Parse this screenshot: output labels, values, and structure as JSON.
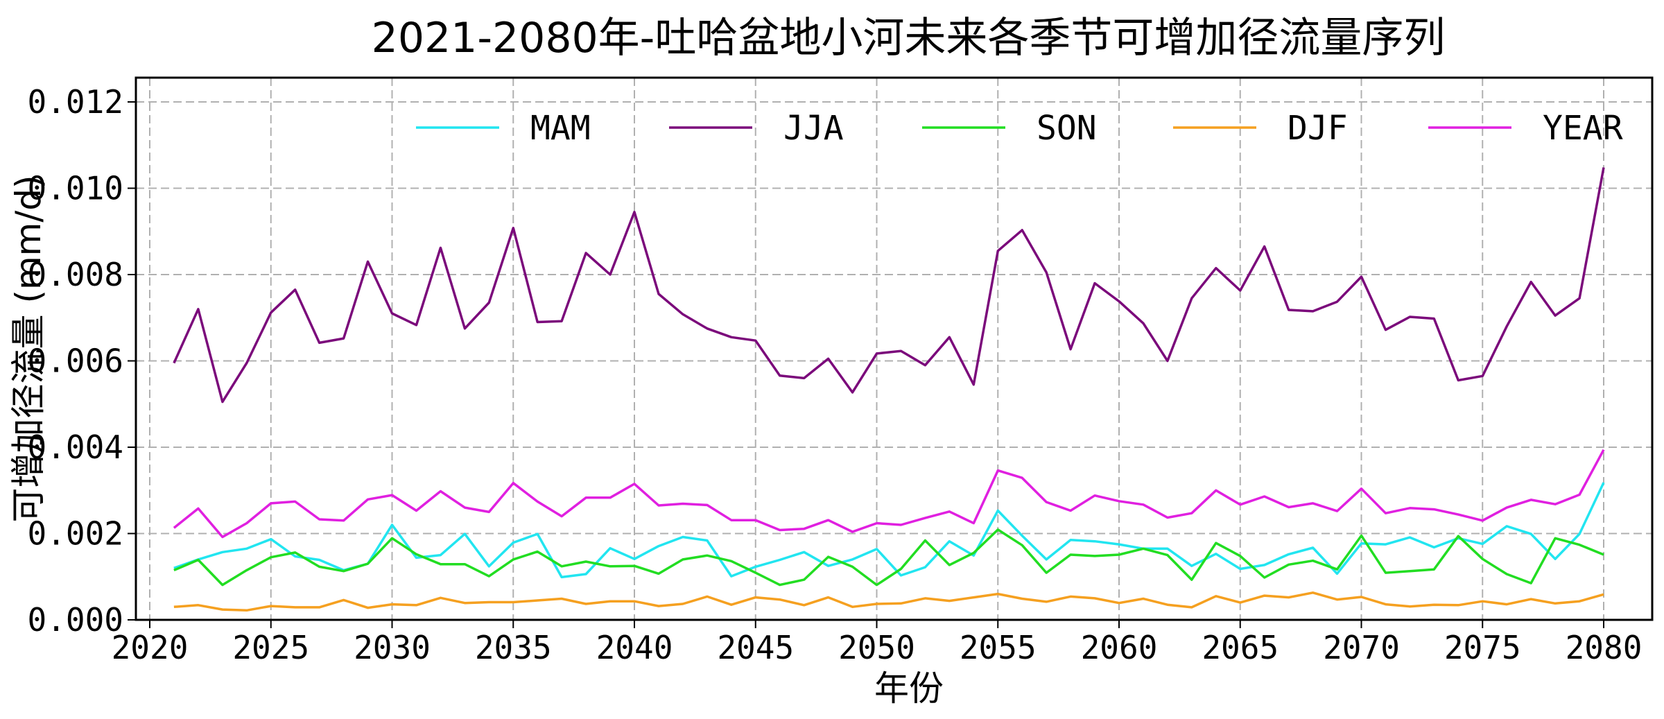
{
  "chart_data": {
    "type": "line",
    "title": "2021-2080年-吐哈盆地小河未来各季节可增加径流量序列",
    "xlabel": "年份",
    "ylabel": "可增加径流量 (mm/d)",
    "xlim": [
      2020,
      2082
    ],
    "ylim": [
      0,
      0.0126
    ],
    "xticks": [
      "2020",
      "2025",
      "2030",
      "2035",
      "2040",
      "2045",
      "2050",
      "2055",
      "2060",
      "2065",
      "2070",
      "2075",
      "2080"
    ],
    "yticks": [
      "0.000",
      "0.002",
      "0.004",
      "0.006",
      "0.008",
      "0.010",
      "0.012"
    ],
    "grid": true,
    "legend_position": "top",
    "x": [
      2021,
      2022,
      2023,
      2024,
      2025,
      2026,
      2027,
      2028,
      2029,
      2030,
      2031,
      2032,
      2033,
      2034,
      2035,
      2036,
      2037,
      2038,
      2039,
      2040,
      2041,
      2042,
      2043,
      2044,
      2045,
      2046,
      2047,
      2048,
      2049,
      2050,
      2051,
      2052,
      2053,
      2054,
      2055,
      2056,
      2057,
      2058,
      2059,
      2060,
      2061,
      2062,
      2063,
      2064,
      2065,
      2066,
      2067,
      2068,
      2069,
      2070,
      2071,
      2072,
      2073,
      2074,
      2075,
      2076,
      2077,
      2078,
      2079,
      2080
    ],
    "series": [
      {
        "name": "MAM",
        "color": "#22e5f0",
        "values": [
          0.0012,
          0.0014,
          0.00157,
          0.00165,
          0.00187,
          0.00147,
          0.00139,
          0.00115,
          0.0013,
          0.0022,
          0.00144,
          0.0015,
          0.00199,
          0.00124,
          0.00179,
          0.00199,
          0.00099,
          0.00106,
          0.00166,
          0.00141,
          0.00171,
          0.00192,
          0.00184,
          0.00101,
          0.00123,
          0.00139,
          0.00157,
          0.00125,
          0.0014,
          0.00164,
          0.00103,
          0.00122,
          0.00182,
          0.00149,
          0.00253,
          0.00195,
          0.0014,
          0.00185,
          0.00182,
          0.00175,
          0.00165,
          0.00165,
          0.00125,
          0.00153,
          0.00118,
          0.00127,
          0.00152,
          0.00167,
          0.00107,
          0.00177,
          0.00175,
          0.00191,
          0.00168,
          0.00189,
          0.00176,
          0.00217,
          0.00199,
          0.00141,
          0.00199,
          0.00318
        ]
      },
      {
        "name": "JJA",
        "color": "#7b0a7b",
        "values": [
          0.00595,
          0.0072,
          0.00505,
          0.00595,
          0.00712,
          0.00765,
          0.00642,
          0.00652,
          0.0083,
          0.0071,
          0.00683,
          0.00862,
          0.00675,
          0.00735,
          0.00908,
          0.0069,
          0.00692,
          0.0085,
          0.008,
          0.00945,
          0.00755,
          0.00708,
          0.00675,
          0.00655,
          0.00647,
          0.00566,
          0.0056,
          0.00605,
          0.00527,
          0.00617,
          0.00623,
          0.0059,
          0.00655,
          0.00545,
          0.00855,
          0.00903,
          0.00805,
          0.00627,
          0.0078,
          0.00738,
          0.00687,
          0.006,
          0.00745,
          0.00815,
          0.00763,
          0.00865,
          0.00718,
          0.00715,
          0.00737,
          0.00795,
          0.00672,
          0.00702,
          0.00698,
          0.00555,
          0.00565,
          0.0068,
          0.00783,
          0.00705,
          0.00745,
          0.01048
        ]
      },
      {
        "name": "SON",
        "color": "#22dd22",
        "values": [
          0.00115,
          0.00139,
          0.00081,
          0.00115,
          0.00145,
          0.00156,
          0.00123,
          0.00113,
          0.0013,
          0.00189,
          0.00152,
          0.00129,
          0.00129,
          0.00101,
          0.0014,
          0.00158,
          0.00124,
          0.00135,
          0.00124,
          0.00125,
          0.00107,
          0.0014,
          0.00149,
          0.00136,
          0.00109,
          0.00081,
          0.00093,
          0.00146,
          0.00123,
          0.00081,
          0.00118,
          0.00184,
          0.00127,
          0.00155,
          0.00209,
          0.00173,
          0.00109,
          0.00151,
          0.00148,
          0.00151,
          0.00165,
          0.0015,
          0.00093,
          0.00178,
          0.00148,
          0.00098,
          0.00128,
          0.00137,
          0.00117,
          0.00195,
          0.00109,
          0.00113,
          0.00117,
          0.00194,
          0.00141,
          0.00106,
          0.00085,
          0.00189,
          0.00174,
          0.00151
        ]
      },
      {
        "name": "DJF",
        "color": "#f5a020",
        "values": [
          0.0003,
          0.00034,
          0.00024,
          0.00022,
          0.00032,
          0.00029,
          0.00029,
          0.00046,
          0.00028,
          0.00036,
          0.00034,
          0.00051,
          0.00039,
          0.00041,
          0.00041,
          0.00045,
          0.00049,
          0.00037,
          0.00043,
          0.00043,
          0.00032,
          0.00037,
          0.00054,
          0.00035,
          0.00052,
          0.00047,
          0.00034,
          0.00052,
          0.0003,
          0.00037,
          0.00038,
          0.0005,
          0.00044,
          0.00052,
          0.0006,
          0.00049,
          0.00042,
          0.00054,
          0.0005,
          0.00039,
          0.00049,
          0.00035,
          0.00029,
          0.00055,
          0.0004,
          0.00056,
          0.00052,
          0.00063,
          0.00047,
          0.00053,
          0.00036,
          0.00031,
          0.00035,
          0.00034,
          0.00043,
          0.00036,
          0.00048,
          0.00038,
          0.00043,
          0.00059
        ]
      },
      {
        "name": "YEAR",
        "color": "#e020e0",
        "values": [
          0.00213,
          0.00258,
          0.00192,
          0.00224,
          0.0027,
          0.00274,
          0.00233,
          0.0023,
          0.00279,
          0.00289,
          0.00253,
          0.00298,
          0.0026,
          0.0025,
          0.00317,
          0.00274,
          0.0024,
          0.00283,
          0.00283,
          0.00315,
          0.00265,
          0.00269,
          0.00266,
          0.00231,
          0.00231,
          0.00208,
          0.00211,
          0.00231,
          0.00204,
          0.00224,
          0.0022,
          0.00236,
          0.00251,
          0.00224,
          0.00346,
          0.00329,
          0.00273,
          0.00253,
          0.00288,
          0.00275,
          0.00267,
          0.00237,
          0.00247,
          0.003,
          0.00267,
          0.00286,
          0.00261,
          0.0027,
          0.00252,
          0.00304,
          0.00247,
          0.00259,
          0.00256,
          0.00244,
          0.0023,
          0.0026,
          0.00278,
          0.00268,
          0.0029,
          0.00394
        ]
      }
    ]
  }
}
